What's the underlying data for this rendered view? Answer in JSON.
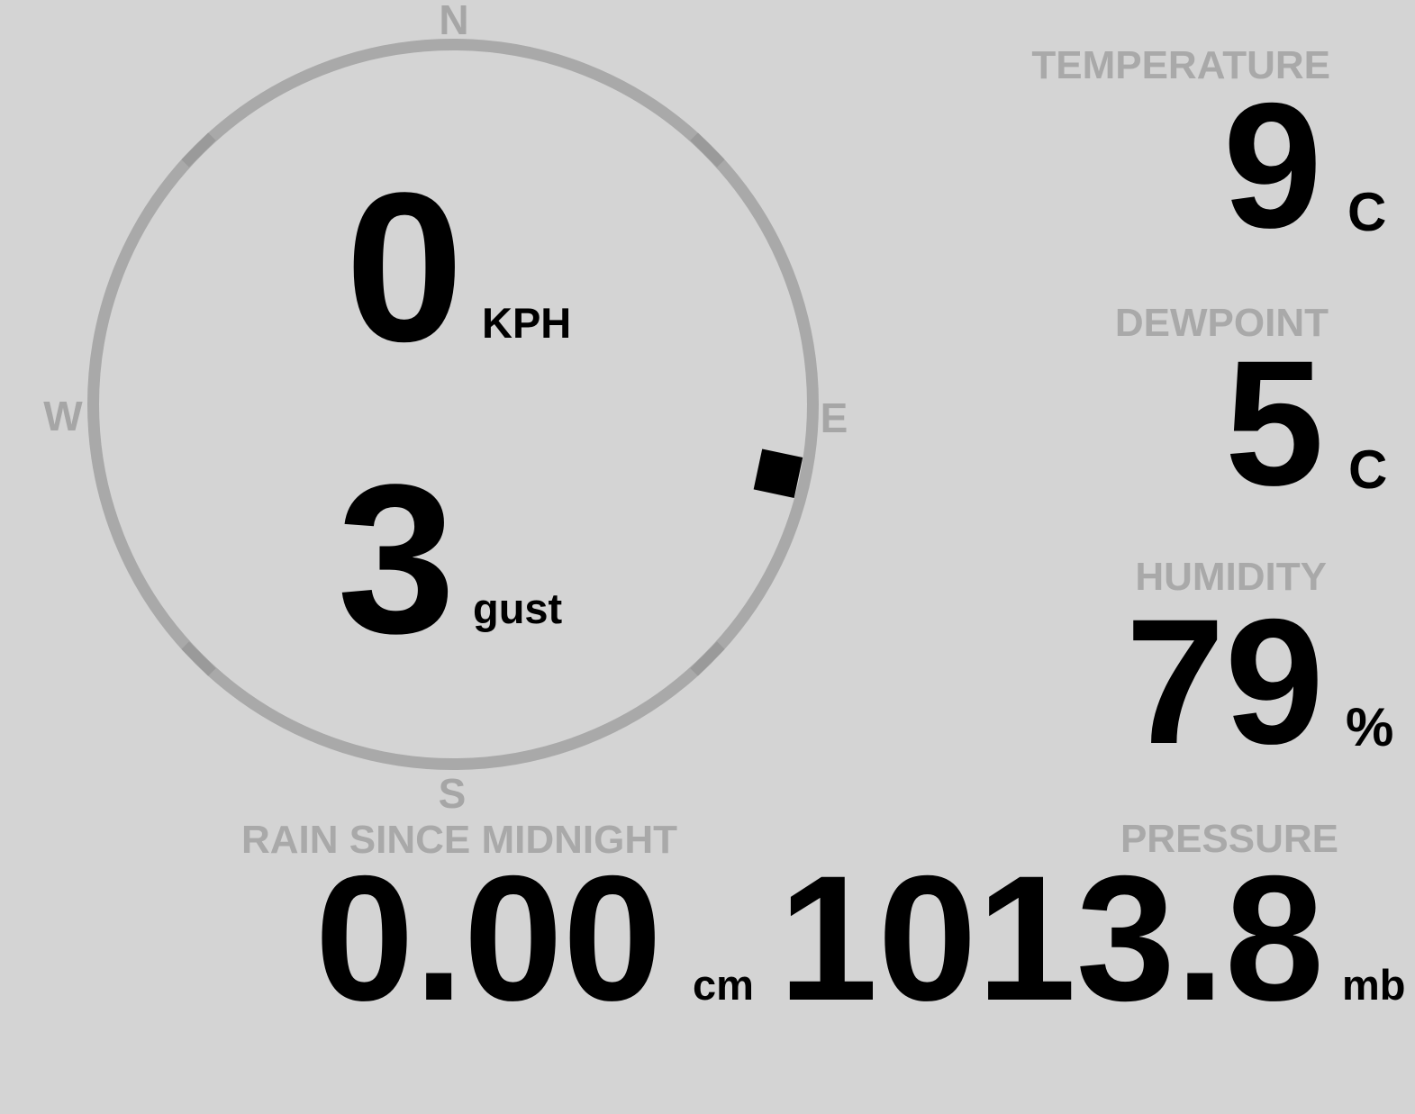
{
  "colors": {
    "background": "#d4d4d4",
    "muted_gray": "#a9a9a9",
    "ring_gray": "#a9a9a9",
    "tick_gray": "#9a9a9a",
    "value_black": "#000000"
  },
  "wind": {
    "speed_value": "0",
    "speed_unit": "KPH",
    "gust_value": "3",
    "gust_unit": "gust",
    "direction_degrees": 102,
    "compass": {
      "north": "N",
      "east": "E",
      "south": "S",
      "west": "W"
    }
  },
  "stats": {
    "temperature": {
      "label": "TEMPERATURE",
      "value": "9",
      "unit": "C"
    },
    "dewpoint": {
      "label": "DEWPOINT",
      "value": "5",
      "unit": "C"
    },
    "humidity": {
      "label": "HUMIDITY",
      "value": "79",
      "unit": "%"
    },
    "rain": {
      "label": "RAIN SINCE MIDNIGHT",
      "value": "0.00",
      "unit": "cm"
    },
    "pressure": {
      "label": "PRESSURE",
      "value": "1013.8",
      "unit": "mb"
    }
  }
}
